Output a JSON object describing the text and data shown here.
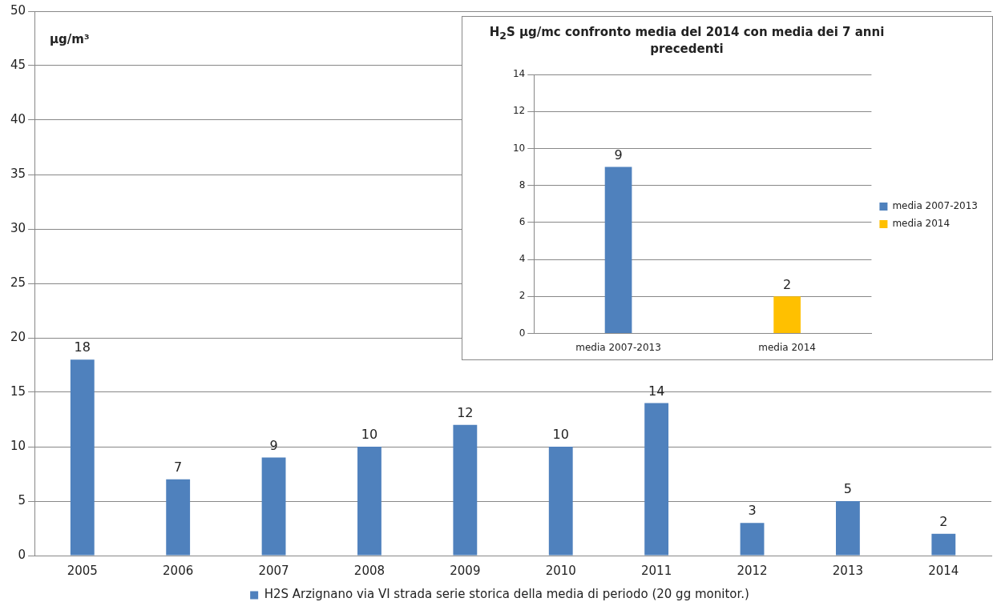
{
  "chart_data": [
    {
      "type": "bar",
      "ylabel": "µg/m³",
      "categories": [
        "2005",
        "2006",
        "2007",
        "2008",
        "2009",
        "2010",
        "2011",
        "2012",
        "2013",
        "2014"
      ],
      "series": [
        {
          "name": "H2S Arzignano via VI strada serie storica della media di periodo (20 gg monitor.)",
          "color": "#4f81bd",
          "values": [
            18,
            7,
            9,
            10,
            12,
            10,
            14,
            3,
            5,
            2
          ]
        }
      ],
      "ylim": [
        0,
        50
      ],
      "yticks": [
        0,
        5,
        10,
        15,
        20,
        25,
        30,
        35,
        40,
        45,
        50
      ],
      "grid": "y",
      "legend": "bottom",
      "data_labels": true
    },
    {
      "type": "bar",
      "title": "H$_{2}$S µg/mc confronto media del 2014 con media dei 7 anni precedenti",
      "categories": [
        "media 2007-2013",
        "media 2014"
      ],
      "series": [
        {
          "name": "media 2007-2013",
          "color": "#4f81bd",
          "values": [
            9,
            null
          ]
        },
        {
          "name": "media 2014",
          "color": "#ffc000",
          "values": [
            null,
            2
          ]
        }
      ],
      "ylim": [
        0,
        14
      ],
      "yticks": [
        0,
        2,
        4,
        6,
        8,
        10,
        12,
        14
      ],
      "grid": "y",
      "legend": "right",
      "data_labels": true
    }
  ]
}
